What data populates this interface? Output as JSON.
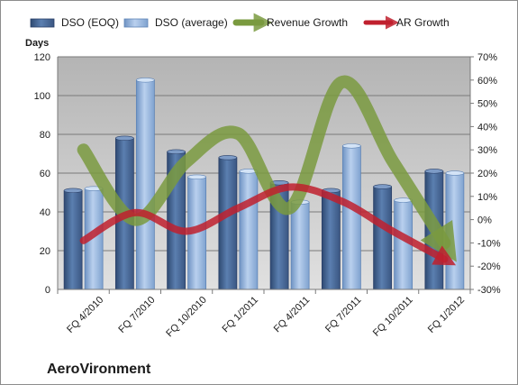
{
  "chart_data": {
    "type": "bar",
    "categories": [
      "FQ 4/2010",
      "FQ 7/2010",
      "FQ 10/2010",
      "FQ 1/2011",
      "FQ 4/2011",
      "FQ 7/2011",
      "FQ 10/2011",
      "FQ 1/2012"
    ],
    "series": [
      {
        "name": "DSO (EOQ)",
        "type": "bar",
        "axis": "left",
        "color": "#4a6c9b",
        "values": [
          51,
          78,
          71,
          68,
          55,
          51,
          53,
          61
        ]
      },
      {
        "name": "DSO (average)",
        "type": "bar",
        "axis": "left",
        "color": "#9bbbe0",
        "values": [
          52,
          108,
          58,
          61,
          45,
          74,
          46,
          60
        ]
      },
      {
        "name": "Revenue Growth",
        "type": "line",
        "axis": "right",
        "color": "#7a9a3f",
        "values": [
          30,
          0,
          25,
          37,
          5,
          59,
          25,
          -10
        ]
      },
      {
        "name": "AR Growth",
        "type": "line",
        "axis": "right",
        "color": "#c0202e",
        "values": [
          -9,
          3,
          -5,
          5,
          14,
          8,
          -5,
          -17
        ]
      }
    ],
    "ylabel": "Days",
    "ylim": [
      0,
      120
    ],
    "yticks": [
      "0",
      "20",
      "40",
      "60",
      "80",
      "100",
      "120"
    ],
    "y2lim": [
      -30,
      70
    ],
    "y2ticks": [
      "-30%",
      "-20%",
      "-10%",
      "0%",
      "10%",
      "20%",
      "30%",
      "40%",
      "50%",
      "60%",
      "70%"
    ],
    "grid": true,
    "legend": "top",
    "annotation": "AeroVironment"
  }
}
